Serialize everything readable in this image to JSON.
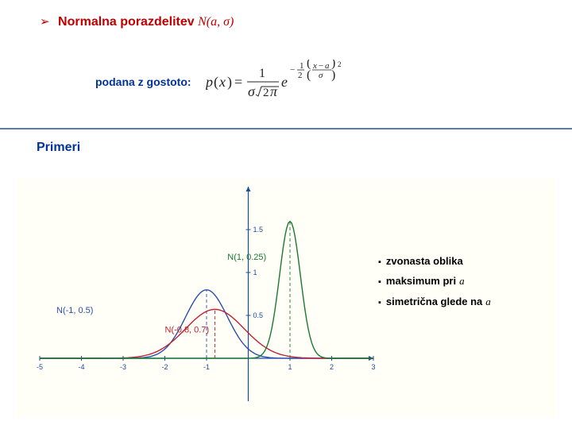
{
  "header": {
    "bullet": "➢",
    "title_main": "Normalna porazdelitev ",
    "title_formula": "N(a, σ)"
  },
  "subtitle": {
    "label": "podana z gostoto:"
  },
  "formula": {
    "text_color": "#232323",
    "fontsize": 18
  },
  "divider": {
    "color": "#5b7ab5"
  },
  "section": {
    "title": "Primeri"
  },
  "chart": {
    "background": "#fffff8",
    "axis_color": "#1a4aa0",
    "grid_color": "#e0e0d0",
    "xlim": [
      -5,
      3
    ],
    "ylim": [
      -0.5,
      2.0
    ],
    "xtick_step": 1,
    "ytick_step": 0.5,
    "curves": [
      {
        "label": "N(-1, 0.5)",
        "a": -1.0,
        "sigma": 0.5,
        "color": "#2b4fb0",
        "label_x": -4.6,
        "label_y": 0.53,
        "dash_x": -1.0
      },
      {
        "label": "N(-0.8, 0.7)",
        "a": -0.8,
        "sigma": 0.7,
        "color": "#c02030",
        "label_x": -2.0,
        "label_y": 0.3,
        "dash_x": -0.8
      },
      {
        "label": "N(1, 0.25)",
        "a": 1.0,
        "sigma": 0.25,
        "color": "#1a7a30",
        "label_x": -0.5,
        "label_y": 1.15,
        "dash_x": 1.0
      }
    ],
    "label_fontsize": 11,
    "tick_fontsize": 9,
    "line_width": 1.4
  },
  "properties": {
    "bullet": "▪",
    "items": [
      {
        "text": "zvonasta oblika",
        "var": ""
      },
      {
        "text": "maksimum pri",
        "var": "a"
      },
      {
        "text": "simetrična glede na",
        "var": "a"
      }
    ]
  }
}
